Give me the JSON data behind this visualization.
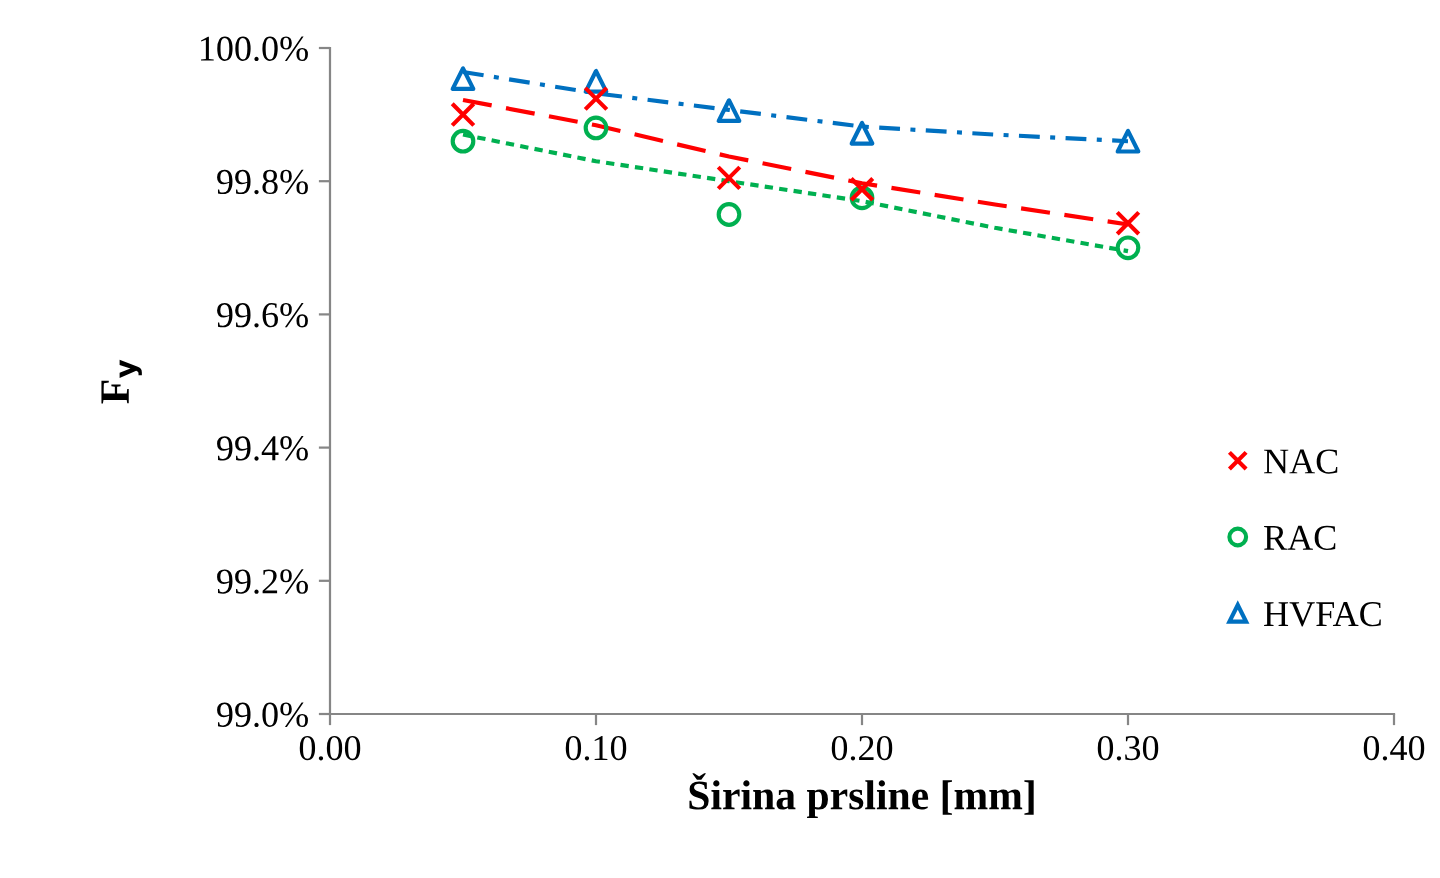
{
  "chart_data": {
    "type": "scatter",
    "xlabel": "Širina prsline [mm]",
    "ylabel": "F$_{y}$",
    "xlim": [
      0,
      0.4
    ],
    "xticks": [
      {
        "value": 0,
        "label": "0.00"
      },
      {
        "value": 0.1,
        "label": "0.10"
      },
      {
        "value": 0.2,
        "label": "0.20"
      },
      {
        "value": 0.3,
        "label": "0.30"
      },
      {
        "value": 0.4,
        "label": "0.40"
      }
    ],
    "ylim": [
      99.0,
      100.0
    ],
    "yticks": [
      {
        "value": 99.0,
        "label": "99.0%"
      },
      {
        "value": 99.2,
        "label": "99.2%"
      },
      {
        "value": 99.4,
        "label": "99.4%"
      },
      {
        "value": 99.6,
        "label": "99.6%"
      },
      {
        "value": 99.8,
        "label": "99.8%"
      },
      {
        "value": 100.0,
        "label": "100.0%"
      }
    ],
    "grid": false,
    "legend": "right",
    "series": [
      {
        "name": "NAC",
        "marker": "cross",
        "color": "#ff0000",
        "x": [
          0.05,
          0.1,
          0.15,
          0.2,
          0.3
        ],
        "values": [
          99.9,
          99.924,
          99.805,
          99.788,
          99.737
        ]
      },
      {
        "name": "RAC",
        "marker": "circle",
        "color": "#00b050",
        "x": [
          0.05,
          0.1,
          0.15,
          0.2,
          0.3
        ],
        "values": [
          99.86,
          99.88,
          99.75,
          99.775,
          99.7
        ]
      },
      {
        "name": "HVFAC",
        "marker": "triangle",
        "color": "#0070c0",
        "x": [
          0.05,
          0.1,
          0.15,
          0.2,
          0.3
        ],
        "values": [
          99.954,
          99.95,
          99.906,
          99.872,
          99.86
        ]
      },
      {
        "type": "line",
        "line_style": "dashed",
        "color": "#ff0000",
        "x": [
          0.05,
          0.1,
          0.15,
          0.2,
          0.25,
          0.3
        ],
        "values": [
          99.922,
          99.884,
          99.837,
          99.797,
          99.765,
          99.735
        ]
      },
      {
        "type": "line",
        "line_style": "dotted",
        "color": "#00b050",
        "x": [
          0.05,
          0.1,
          0.15,
          0.2,
          0.25,
          0.3
        ],
        "values": [
          99.87,
          99.83,
          99.8,
          99.77,
          99.73,
          99.695
        ]
      },
      {
        "type": "line",
        "line_style": "dashdot",
        "color": "#0070c0",
        "x": [
          0.05,
          0.1,
          0.15,
          0.2,
          0.25,
          0.3
        ],
        "values": [
          99.964,
          99.932,
          99.907,
          99.882,
          99.87,
          99.86
        ]
      }
    ]
  }
}
